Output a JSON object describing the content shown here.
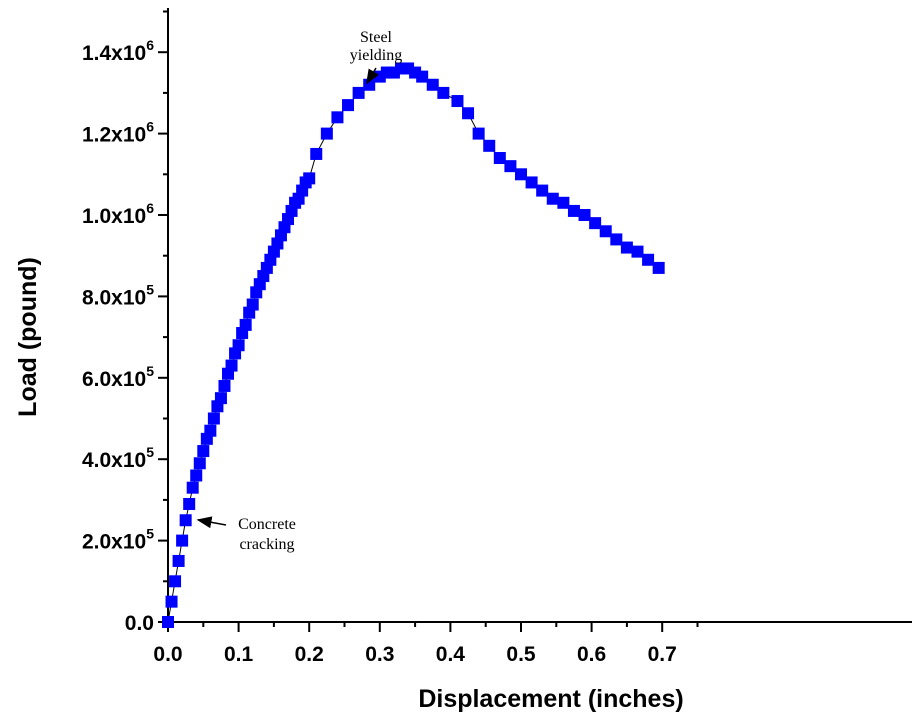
{
  "chart_data": {
    "type": "scatter",
    "xlabel": "Displacement (inches)",
    "ylabel": "Load  (pound)",
    "xlim": [
      0.0,
      0.74
    ],
    "ylim": [
      0,
      1500000
    ],
    "grid": false,
    "marker_color": "#0000ff",
    "marker_shape": "square",
    "x_ticks": [
      {
        "value": 0.0,
        "label": "0.0"
      },
      {
        "value": 0.1,
        "label": "0.1"
      },
      {
        "value": 0.2,
        "label": "0.2"
      },
      {
        "value": 0.3,
        "label": "0.3"
      },
      {
        "value": 0.4,
        "label": "0.4"
      },
      {
        "value": 0.5,
        "label": "0.5"
      },
      {
        "value": 0.6,
        "label": "0.6"
      },
      {
        "value": 0.7,
        "label": "0.7"
      }
    ],
    "y_ticks": [
      {
        "value": 0,
        "base": "0.0",
        "exp": ""
      },
      {
        "value": 200000,
        "base": "2.0x10",
        "exp": "5"
      },
      {
        "value": 400000,
        "base": "4.0x10",
        "exp": "5"
      },
      {
        "value": 600000,
        "base": "6.0x10",
        "exp": "5"
      },
      {
        "value": 800000,
        "base": "8.0x10",
        "exp": "5"
      },
      {
        "value": 1000000,
        "base": "1.0x10",
        "exp": "6"
      },
      {
        "value": 1200000,
        "base": "1.2x10",
        "exp": "6"
      },
      {
        "value": 1400000,
        "base": "1.4x10",
        "exp": "6"
      }
    ],
    "series": [
      {
        "x": [
          0.0,
          0.005,
          0.01,
          0.015,
          0.02,
          0.025,
          0.03,
          0.035,
          0.04,
          0.045,
          0.05,
          0.055,
          0.06,
          0.065,
          0.07,
          0.075,
          0.08,
          0.085,
          0.09,
          0.095,
          0.1,
          0.105,
          0.11,
          0.115,
          0.12,
          0.125,
          0.13,
          0.135,
          0.14,
          0.145,
          0.15,
          0.155,
          0.16,
          0.165,
          0.17,
          0.175,
          0.18,
          0.185,
          0.19,
          0.195,
          0.2,
          0.21,
          0.225,
          0.24,
          0.255,
          0.27,
          0.285,
          0.3,
          0.31,
          0.32,
          0.33,
          0.34,
          0.35,
          0.36,
          0.375,
          0.39,
          0.41,
          0.425,
          0.44,
          0.455,
          0.47,
          0.485,
          0.5,
          0.515,
          0.53,
          0.545,
          0.56,
          0.575,
          0.59,
          0.605,
          0.62,
          0.635,
          0.65,
          0.665,
          0.68,
          0.695
        ],
        "y": [
          0,
          50000,
          100000,
          150000,
          200000,
          250000,
          290000,
          330000,
          360000,
          390000,
          420000,
          450000,
          470000,
          500000,
          530000,
          550000,
          580000,
          610000,
          630000,
          660000,
          680000,
          710000,
          730000,
          760000,
          780000,
          810000,
          830000,
          850000,
          870000,
          890000,
          910000,
          930000,
          950000,
          970000,
          990000,
          1010000,
          1030000,
          1040000,
          1060000,
          1080000,
          1090000,
          1150000,
          1200000,
          1240000,
          1270000,
          1300000,
          1320000,
          1340000,
          1350000,
          1350000,
          1360000,
          1360000,
          1350000,
          1340000,
          1320000,
          1300000,
          1280000,
          1250000,
          1200000,
          1170000,
          1140000,
          1120000,
          1100000,
          1080000,
          1060000,
          1040000,
          1030000,
          1010000,
          1000000,
          980000,
          960000,
          940000,
          920000,
          910000,
          890000,
          870000
        ]
      }
    ],
    "annotations": [
      {
        "lines": [
          "Steel",
          "yielding"
        ],
        "target_x": 0.275,
        "target_y": 1305000
      },
      {
        "lines": [
          "Concrete",
          "cracking"
        ],
        "target_x": 0.03,
        "target_y": 255000
      }
    ]
  }
}
